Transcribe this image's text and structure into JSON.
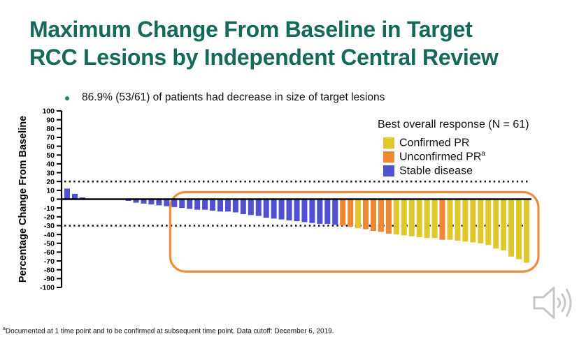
{
  "slide": {
    "title": "Maximum Change From Baseline in Target RCC Lesions by Independent Central Review",
    "title_color": "#15695A",
    "bullet": "86.9% (53/61) of patients had decrease in size of target lesions",
    "footnote_sup": "a",
    "footnote": "Documented at 1 time point and to be confirmed at subsequent time point. Data cutoff: December 6, 2019."
  },
  "legend": {
    "title": "Best overall response (N = 61)",
    "items": [
      {
        "key": "confirmed",
        "label": "Confirmed PR",
        "sup": "",
        "color": "#DFC72C"
      },
      {
        "key": "unconfirmed",
        "label": "Unconfirmed PR",
        "sup": "a",
        "color": "#EF8733"
      },
      {
        "key": "stable",
        "label": "Stable disease",
        "sup": "",
        "color": "#5050D0"
      }
    ]
  },
  "chart_data": {
    "type": "bar",
    "subtype": "waterfall",
    "title": "",
    "xlabel": "",
    "ylabel": "Percentage Change From Baseline",
    "ylim": [
      -100,
      100
    ],
    "yticks": [
      100,
      90,
      80,
      70,
      60,
      50,
      40,
      30,
      20,
      10,
      0,
      -10,
      -20,
      -30,
      -40,
      -50,
      -60,
      -70,
      -80,
      -90,
      -100
    ],
    "reference_lines": [
      20,
      -30
    ],
    "grid": false,
    "legend_position": "upper-right",
    "n_patients": 61,
    "bars": [
      {
        "value": 12,
        "response": "stable"
      },
      {
        "value": 6,
        "response": "stable"
      },
      {
        "value": 2,
        "response": "stable"
      },
      {
        "value": 0,
        "response": "stable"
      },
      {
        "value": 0,
        "response": "stable"
      },
      {
        "value": 0,
        "response": "stable"
      },
      {
        "value": 0,
        "response": "stable"
      },
      {
        "value": 0,
        "response": "stable"
      },
      {
        "value": -2,
        "response": "stable"
      },
      {
        "value": -4,
        "response": "stable"
      },
      {
        "value": -5,
        "response": "stable"
      },
      {
        "value": -6,
        "response": "stable"
      },
      {
        "value": -7,
        "response": "stable"
      },
      {
        "value": -8,
        "response": "stable"
      },
      {
        "value": -9,
        "response": "stable"
      },
      {
        "value": -10,
        "response": "stable"
      },
      {
        "value": -11,
        "response": "stable"
      },
      {
        "value": -12,
        "response": "stable"
      },
      {
        "value": -12,
        "response": "stable"
      },
      {
        "value": -13,
        "response": "stable"
      },
      {
        "value": -14,
        "response": "stable"
      },
      {
        "value": -14,
        "response": "stable"
      },
      {
        "value": -15,
        "response": "stable"
      },
      {
        "value": -17,
        "response": "stable"
      },
      {
        "value": -18,
        "response": "stable"
      },
      {
        "value": -19,
        "response": "stable"
      },
      {
        "value": -21,
        "response": "stable"
      },
      {
        "value": -22,
        "response": "stable"
      },
      {
        "value": -23,
        "response": "stable"
      },
      {
        "value": -24,
        "response": "stable"
      },
      {
        "value": -25,
        "response": "stable"
      },
      {
        "value": -26,
        "response": "stable"
      },
      {
        "value": -27,
        "response": "stable"
      },
      {
        "value": -28,
        "response": "stable"
      },
      {
        "value": -28,
        "response": "stable"
      },
      {
        "value": -29,
        "response": "stable"
      },
      {
        "value": -30,
        "response": "unconfirmed"
      },
      {
        "value": -31,
        "response": "unconfirmed"
      },
      {
        "value": -33,
        "response": "confirmed"
      },
      {
        "value": -34,
        "response": "unconfirmed"
      },
      {
        "value": -36,
        "response": "unconfirmed"
      },
      {
        "value": -37,
        "response": "unconfirmed"
      },
      {
        "value": -39,
        "response": "unconfirmed"
      },
      {
        "value": -40,
        "response": "confirmed"
      },
      {
        "value": -41,
        "response": "confirmed"
      },
      {
        "value": -42,
        "response": "confirmed"
      },
      {
        "value": -43,
        "response": "confirmed"
      },
      {
        "value": -44,
        "response": "confirmed"
      },
      {
        "value": -44,
        "response": "confirmed"
      },
      {
        "value": -46,
        "response": "unconfirmed"
      },
      {
        "value": -46,
        "response": "confirmed"
      },
      {
        "value": -47,
        "response": "confirmed"
      },
      {
        "value": -48,
        "response": "confirmed"
      },
      {
        "value": -49,
        "response": "confirmed"
      },
      {
        "value": -50,
        "response": "confirmed"
      },
      {
        "value": -52,
        "response": "confirmed"
      },
      {
        "value": -56,
        "response": "confirmed"
      },
      {
        "value": -58,
        "response": "confirmed"
      },
      {
        "value": -65,
        "response": "confirmed"
      },
      {
        "value": -68,
        "response": "confirmed"
      },
      {
        "value": -72,
        "response": "confirmed"
      }
    ],
    "highlight_box": {
      "from_bar": 15,
      "to_bar": 61,
      "top_value": 8,
      "bottom_value": -82,
      "color": "#E98F3E"
    }
  },
  "icons": {
    "bullet_icon": "dot",
    "audio_icon": "speaker-sound-waves"
  }
}
